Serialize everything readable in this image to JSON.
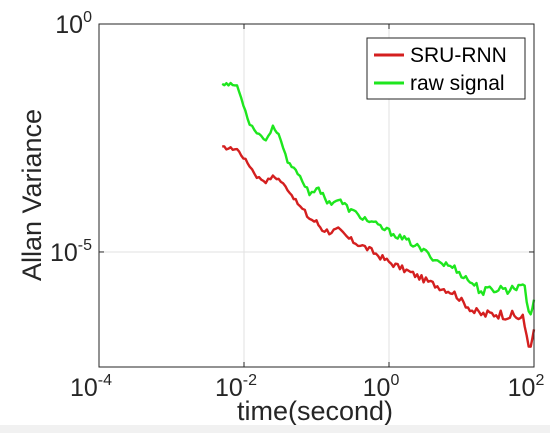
{
  "chart_data": {
    "type": "line",
    "xscale": "log",
    "yscale": "log",
    "xlabel": "time(second)",
    "ylabel": "Allan Variance",
    "xlim": [
      0.0001,
      100
    ],
    "ylim": [
      3e-08,
      1
    ],
    "grid": true,
    "legend_position": "top-right",
    "x_ticks": [
      {
        "base": "10",
        "exp": "-4",
        "value": 0.0001
      },
      {
        "base": "10",
        "exp": "-2",
        "value": 0.01
      },
      {
        "base": "10",
        "exp": "0",
        "value": 1
      },
      {
        "base": "10",
        "exp": "2",
        "value": 100
      }
    ],
    "y_ticks": [
      {
        "base": "10",
        "exp": "0",
        "value": 1
      },
      {
        "base": "10",
        "exp": "-5",
        "value": 1e-05
      }
    ],
    "series": [
      {
        "name": "SRU-RNN",
        "color": "#d41f1f",
        "points": [
          [
            0.005,
            0.00195
          ],
          [
            0.008,
            0.0018
          ],
          [
            0.012,
            0.00078
          ],
          [
            0.015,
            0.00045
          ],
          [
            0.02,
            0.00035
          ],
          [
            0.025,
            0.00045
          ],
          [
            0.03,
            0.0004
          ],
          [
            0.04,
            0.00024
          ],
          [
            0.055,
            0.000115
          ],
          [
            0.08,
            5.5e-05
          ],
          [
            0.1,
            4.5e-05
          ],
          [
            0.12,
            3.2e-05
          ],
          [
            0.15,
            2.8e-05
          ],
          [
            0.2,
            3e-05
          ],
          [
            0.3,
            1.8e-05
          ],
          [
            0.5,
            1.2e-05
          ],
          [
            1,
            6e-06
          ],
          [
            2,
            3.5e-06
          ],
          [
            3,
            2.5e-06
          ],
          [
            5,
            1.7e-06
          ],
          [
            8,
            1.25e-06
          ],
          [
            10,
            8.5e-07
          ],
          [
            15,
            4.8e-07
          ],
          [
            20,
            4.2e-07
          ],
          [
            30,
            4.5e-07
          ],
          [
            50,
            4e-07
          ],
          [
            70,
            3.5e-07
          ],
          [
            90,
            7e-08
          ],
          [
            100,
            2e-07
          ]
        ]
      },
      {
        "name": "raw signal",
        "color": "#1ee61e",
        "points": [
          [
            0.005,
            0.05
          ],
          [
            0.008,
            0.045
          ],
          [
            0.012,
            0.0065
          ],
          [
            0.015,
            0.0043
          ],
          [
            0.02,
            0.0028
          ],
          [
            0.025,
            0.0055
          ],
          [
            0.03,
            0.004
          ],
          [
            0.04,
            0.0009
          ],
          [
            0.055,
            0.00055
          ],
          [
            0.08,
            0.0002
          ],
          [
            0.1,
            0.00025
          ],
          [
            0.15,
            0.00012
          ],
          [
            0.2,
            0.00014
          ],
          [
            0.3,
            8e-05
          ],
          [
            0.5,
            5e-05
          ],
          [
            1,
            2.8e-05
          ],
          [
            2,
            1.6e-05
          ],
          [
            3,
            1.05e-05
          ],
          [
            5,
            6e-06
          ],
          [
            8,
            4.5e-06
          ],
          [
            10,
            3.2e-06
          ],
          [
            15,
            1.9e-06
          ],
          [
            20,
            1.3e-06
          ],
          [
            30,
            1.6e-06
          ],
          [
            50,
            1.5e-06
          ],
          [
            70,
            2.2e-06
          ],
          [
            90,
            4e-07
          ],
          [
            100,
            9e-07
          ]
        ]
      }
    ]
  }
}
